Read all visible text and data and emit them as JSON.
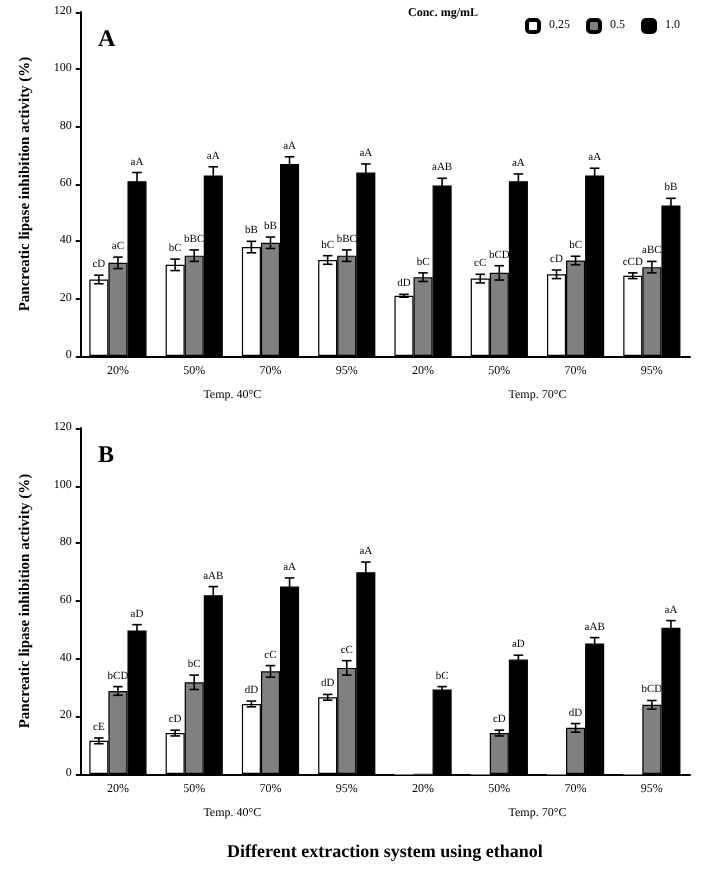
{
  "chart_data": [
    {
      "type": "bar",
      "title": "A",
      "ylabel": "Pancreatic lipase inhibition activity (%)",
      "categories": [
        "20%",
        "50%",
        "70%",
        "95%",
        "20%",
        "50%",
        "70%",
        "95%"
      ],
      "legend": "top right",
      "legend_title": "Conc. mg/mL",
      "ylim": [
        0,
        120
      ],
      "yticks": [
        0,
        20,
        40,
        60,
        80,
        100,
        120
      ],
      "annotations": [
        "Temp. 40°C",
        "Temp. 70°C"
      ],
      "series": [
        {
          "name": "0.25",
          "color": "#ffffff",
          "values": [
            26.7,
            31.8,
            38,
            33.5,
            21,
            27,
            28.5,
            28
          ],
          "errors": [
            1.5,
            2,
            2,
            1.5,
            0.5,
            1.5,
            1.5,
            1
          ],
          "value_labels": [
            "cD",
            "bC",
            "bB",
            "bC",
            "dD",
            "cC",
            "cD",
            "cCD"
          ]
        },
        {
          "name": "0.5",
          "color": "#808080",
          "values": [
            32.5,
            35,
            39.5,
            35,
            27.5,
            29,
            33.3,
            31
          ],
          "errors": [
            2,
            2,
            2,
            2,
            1.5,
            2.5,
            1.5,
            2
          ],
          "value_labels": [
            "aC",
            "bBC",
            "bB",
            "bBC",
            "bC",
            "bCD",
            "bC",
            "aBC"
          ]
        },
        {
          "name": "1.0",
          "color": "#000000",
          "values": [
            61,
            63,
            67,
            64,
            59.5,
            61,
            63,
            52.5
          ],
          "errors": [
            3,
            3,
            2.5,
            3,
            2.5,
            2.5,
            2.5,
            2.5
          ],
          "value_labels": [
            "aA",
            "aA",
            "aA",
            "aA",
            "aAB",
            "aA",
            "aA",
            "bB"
          ]
        }
      ]
    },
    {
      "type": "bar",
      "title": "B",
      "ylabel": "Pancreatic lipase inhibition activity (%)",
      "xlabel": "Different extraction system using ethanol",
      "categories": [
        "20%",
        "50%",
        "70%",
        "95%",
        "20%",
        "50%",
        "70%",
        "95%"
      ],
      "ylim": [
        0,
        120
      ],
      "yticks": [
        0,
        20,
        40,
        60,
        80,
        100,
        120
      ],
      "annotations": [
        "Temp. 40°C",
        "Temp. 70°C"
      ],
      "series": [
        {
          "name": "0.25",
          "color": "#ffffff",
          "values": [
            11.5,
            14.2,
            24.3,
            26.6,
            0,
            0,
            0,
            0
          ],
          "errors": [
            1,
            1,
            1,
            1,
            null,
            null,
            null,
            null
          ],
          "value_labels": [
            "cE",
            "cD",
            "dD",
            "dD",
            null,
            null,
            null,
            null
          ]
        },
        {
          "name": "0.5",
          "color": "#808080",
          "values": [
            28.8,
            31.8,
            35.6,
            36.8,
            0,
            14.2,
            16,
            24
          ],
          "errors": [
            1.5,
            2.5,
            2,
            2.5,
            null,
            1,
            1.5,
            1.5
          ],
          "value_labels": [
            "bCD",
            "bC",
            "cC",
            "cC",
            null,
            "cD",
            "dD",
            "bCD"
          ]
        },
        {
          "name": "1.0",
          "color": "#000000",
          "values": [
            49.8,
            62,
            65,
            70,
            29.3,
            39.7,
            45.3,
            50.7
          ],
          "errors": [
            2,
            3,
            3,
            3.5,
            1,
            1.5,
            2,
            2.5
          ],
          "value_labels": [
            "aD",
            "aAB",
            "aA",
            "aA",
            "bC",
            "aD",
            "aAB",
            "aA"
          ]
        }
      ]
    }
  ]
}
